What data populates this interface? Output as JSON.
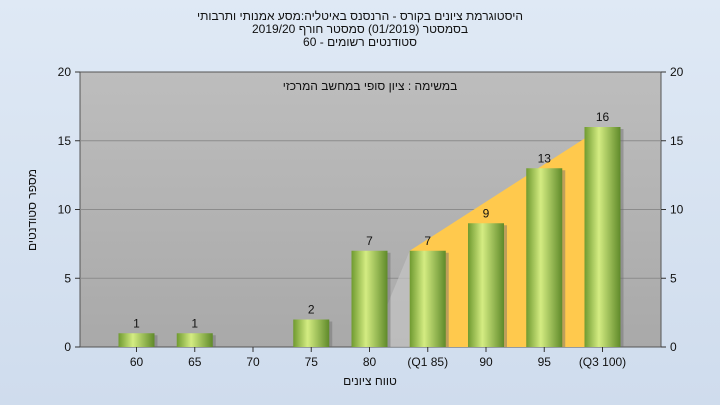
{
  "chart_data": {
    "type": "bar",
    "title_lines": [
      "היסטוגרמת ציונים בקורס - הרנסנס באיטליה:מסע אמנותי ותרבותי",
      "בסמסטר  (01/2019)  סמסטר חורף  2019/20",
      "סטודנטים רשומים - 60"
    ],
    "annotation": "במשימה : ציון סופי במחשב המרכזי",
    "xlabel": "טווח ציונים",
    "ylabel": "מספר סטודנטים",
    "categories": [
      "60",
      "65",
      "70",
      "75",
      "80",
      "(Q1 85)",
      "90",
      "95",
      "(Q3 100)"
    ],
    "values": [
      1,
      1,
      0,
      2,
      7,
      7,
      9,
      13,
      16
    ],
    "value_labels": [
      "1",
      "1",
      "",
      "2",
      "7",
      "7",
      "9",
      "13",
      "16"
    ],
    "ylim": [
      0,
      20
    ],
    "yticks": [
      0,
      5,
      10,
      15,
      20
    ],
    "y_tick_labels": [
      "0",
      "5",
      "10",
      "15",
      "20"
    ],
    "grid": true,
    "iqr_band": {
      "from_category": "(Q1 85)",
      "to_category": "(Q3 100)",
      "color": "#ffc94d"
    },
    "colors": {
      "plot_background": "#b4b4b4",
      "bar_light": "#d4ec82",
      "bar_dark": "#5f8a2a"
    }
  }
}
